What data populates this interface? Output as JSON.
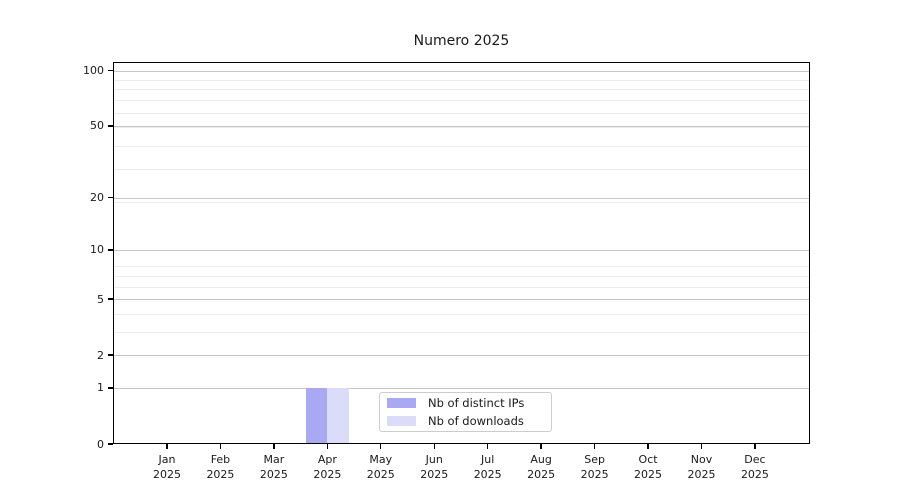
{
  "chart_data": {
    "type": "bar",
    "title": "Numero 2025",
    "categories": [
      {
        "month": "Jan",
        "year": "2025"
      },
      {
        "month": "Feb",
        "year": "2025"
      },
      {
        "month": "Mar",
        "year": "2025"
      },
      {
        "month": "Apr",
        "year": "2025"
      },
      {
        "month": "May",
        "year": "2025"
      },
      {
        "month": "Jun",
        "year": "2025"
      },
      {
        "month": "Jul",
        "year": "2025"
      },
      {
        "month": "Aug",
        "year": "2025"
      },
      {
        "month": "Sep",
        "year": "2025"
      },
      {
        "month": "Oct",
        "year": "2025"
      },
      {
        "month": "Nov",
        "year": "2025"
      },
      {
        "month": "Dec",
        "year": "2025"
      }
    ],
    "series": [
      {
        "name": "Nb of distinct IPs",
        "color": "#a8a8f3",
        "values": [
          0,
          0,
          0,
          1,
          0,
          0,
          0,
          0,
          0,
          0,
          0,
          0
        ]
      },
      {
        "name": "Nb of downloads",
        "color": "#dbdbfa",
        "values": [
          0,
          0,
          0,
          1,
          0,
          0,
          0,
          0,
          0,
          0,
          0,
          0
        ]
      }
    ],
    "y_axis": {
      "scale": "log1p",
      "ticks": [
        0,
        1,
        2,
        5,
        10,
        20,
        50,
        100
      ],
      "minor_gridlines": [
        3,
        4,
        6,
        7,
        8,
        19,
        29,
        39,
        49,
        59,
        69,
        79,
        89
      ],
      "range": [
        0,
        111
      ]
    },
    "legend": {
      "position": "lower center",
      "entries": [
        "Nb of distinct IPs",
        "Nb of downloads"
      ]
    },
    "grid": true,
    "style": {
      "grid_major_color": "#c6c6c6",
      "grid_minor_color": "#ededed",
      "spine_color": "#000000",
      "text_color": "#1a1a1a",
      "background": "#ffffff"
    }
  }
}
